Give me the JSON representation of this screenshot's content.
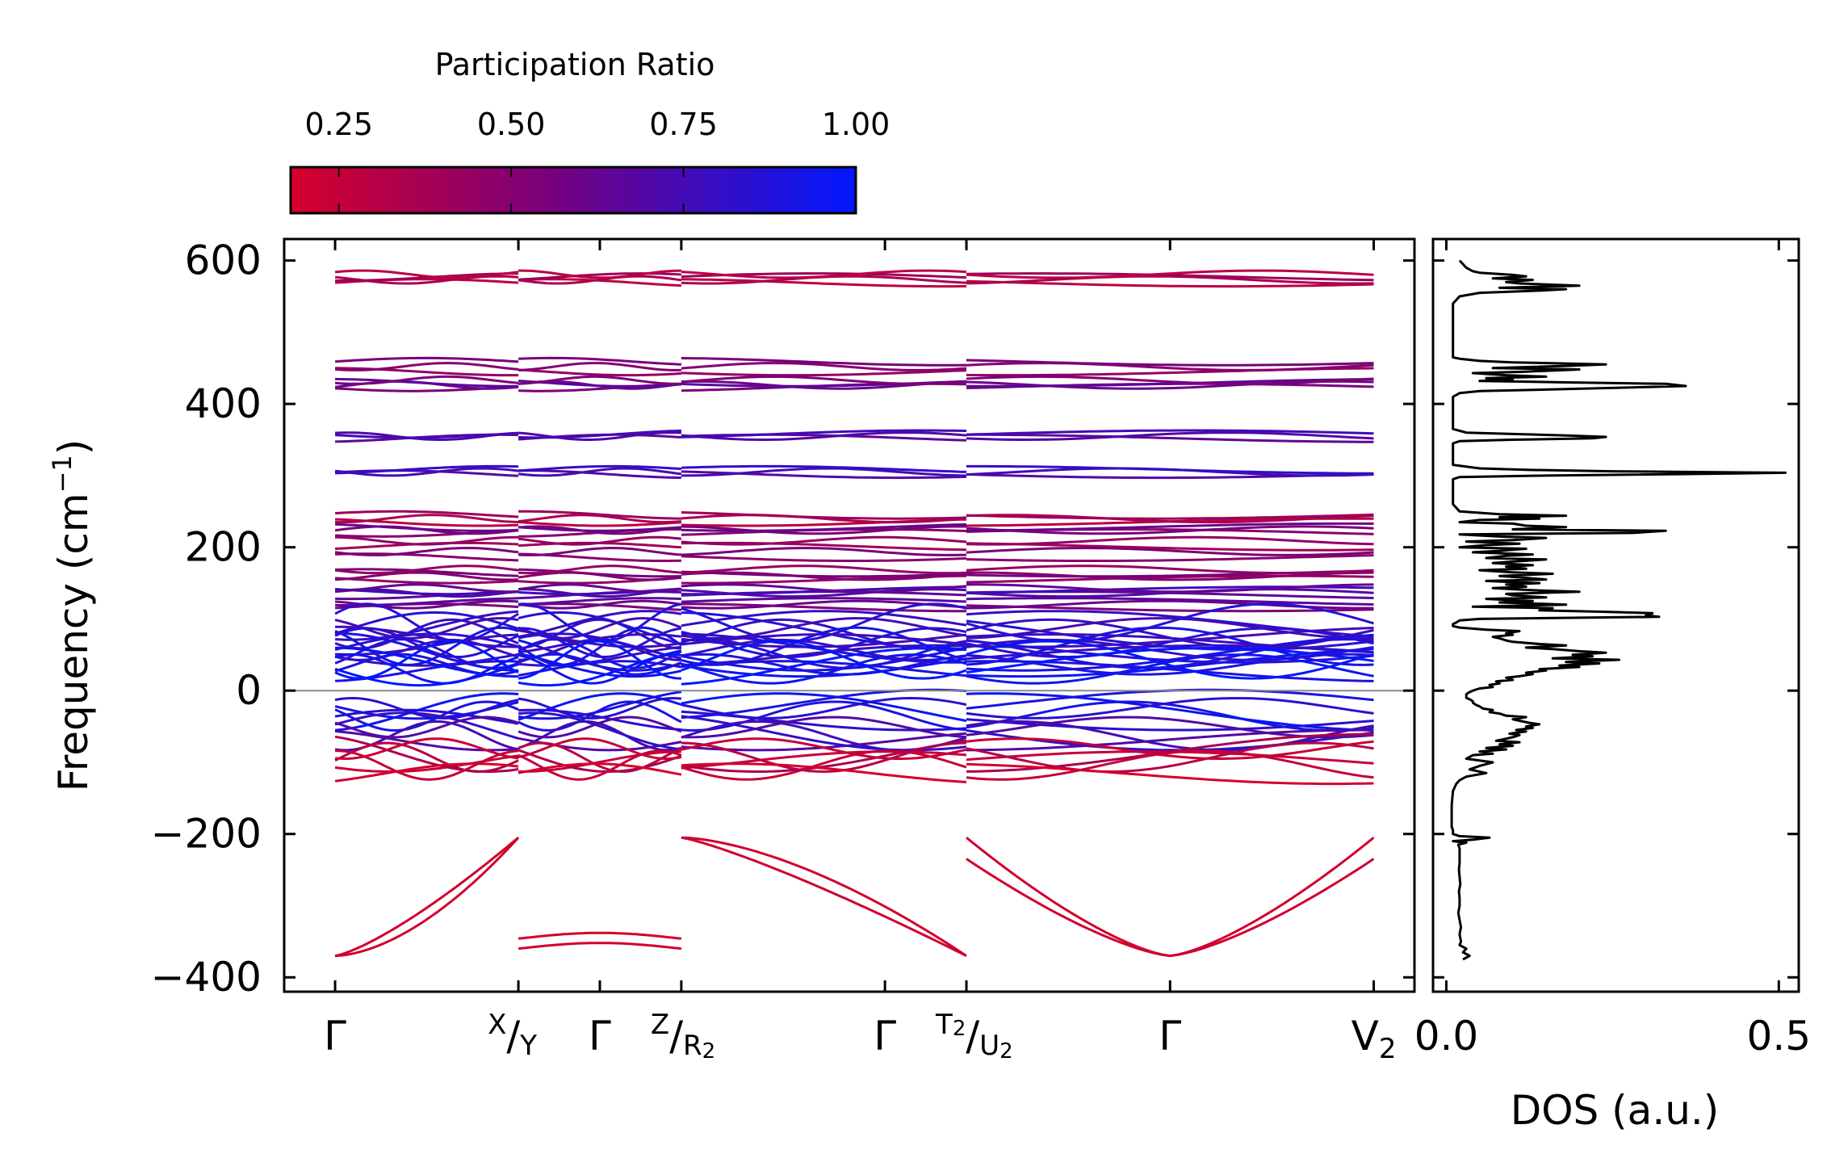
{
  "colorbar": {
    "title": "Participation Ratio",
    "ticks": [
      0.25,
      0.5,
      0.75,
      1.0
    ],
    "tick_labels": [
      "0.25",
      "0.50",
      "0.75",
      "1.00"
    ],
    "range": [
      0.18,
      1.0
    ],
    "color_low": "#d6002a",
    "color_mid": "#7a007a",
    "color_high": "#0018ff"
  },
  "chart_data": [
    {
      "type": "line",
      "name": "phonon band structure",
      "ylabel": "Frequency (cm",
      "ylabel_sup": "−1",
      "ylabel_suffix": ")",
      "ylim": [
        -420,
        630
      ],
      "yticks": [
        -400,
        -200,
        0,
        200,
        400,
        600
      ],
      "ytick_labels": [
        "−400",
        "−200",
        "0",
        "200",
        "400",
        "600"
      ],
      "xlim": [
        -0.25,
        5.3
      ],
      "high_symmetry_points": [
        {
          "x": 0.0,
          "main": "Γ",
          "small": false
        },
        {
          "x": 0.9,
          "main": "X",
          "second": "Y",
          "small": true
        },
        {
          "x": 1.3,
          "main": "Γ",
          "small": false
        },
        {
          "x": 1.7,
          "main": "Z",
          "second": "R",
          "sub": "2",
          "small": true
        },
        {
          "x": 2.7,
          "main": "Γ",
          "small": false
        },
        {
          "x": 3.1,
          "main": "T",
          "tsub": "2",
          "second": "U",
          "sub": "2",
          "small": true
        },
        {
          "x": 4.1,
          "main": "Γ",
          "small": false
        },
        {
          "x": 5.1,
          "main": "V",
          "sub": "2",
          "small": false
        }
      ],
      "segments": [
        [
          0.0,
          0.9
        ],
        [
          0.9,
          1.7
        ],
        [
          1.7,
          3.1
        ],
        [
          3.1,
          5.1
        ]
      ],
      "zero_line": 0,
      "band_families": [
        {
          "center": 575,
          "spread": 12,
          "count": 4,
          "pr": 0.35
        },
        {
          "center": 452,
          "spread": 14,
          "count": 3,
          "pr": 0.5
        },
        {
          "center": 428,
          "spread": 10,
          "count": 4,
          "pr": 0.6
        },
        {
          "center": 355,
          "spread": 6,
          "count": 3,
          "pr": 0.7
        },
        {
          "center": 305,
          "spread": 6,
          "count": 3,
          "pr": 0.75
        },
        {
          "center": 240,
          "spread": 10,
          "count": 3,
          "pr": 0.35
        },
        {
          "center": 224,
          "spread": 8,
          "count": 3,
          "pr": 0.55
        },
        {
          "center": 205,
          "spread": 8,
          "count": 2,
          "pr": 0.45
        },
        {
          "center": 190,
          "spread": 8,
          "count": 2,
          "pr": 0.55
        },
        {
          "center": 162,
          "spread": 14,
          "count": 4,
          "pr": 0.5
        },
        {
          "center": 138,
          "spread": 10,
          "count": 4,
          "pr": 0.7
        },
        {
          "center": 120,
          "spread": 8,
          "count": 3,
          "pr": 0.6
        },
        {
          "center": 85,
          "spread": 20,
          "count": 6,
          "pr": 0.8
        },
        {
          "center": 58,
          "spread": 18,
          "count": 8,
          "pr": 0.85
        },
        {
          "center": 35,
          "spread": 16,
          "count": 6,
          "pr": 0.95
        },
        {
          "center": -30,
          "spread": 22,
          "count": 5,
          "pr": 0.9
        },
        {
          "center": -60,
          "spread": 18,
          "count": 4,
          "pr": 0.75
        },
        {
          "center": -90,
          "spread": 18,
          "count": 4,
          "pr": 0.3
        },
        {
          "center": -110,
          "spread": 12,
          "count": 2,
          "pr": 0.25
        }
      ],
      "soft_modes": {
        "min": -370,
        "max": -205,
        "pr": 0.2
      }
    },
    {
      "type": "line",
      "name": "density of states",
      "xlabel": "DOS (a.u.)",
      "xlim": [
        -0.02,
        0.53
      ],
      "xticks": [
        0.0,
        0.5
      ],
      "xtick_labels": [
        "0.0",
        "0.5"
      ],
      "ylim": [
        -420,
        630
      ],
      "freq": [
        -375,
        -370,
        -365,
        -360,
        -355,
        -350,
        -340,
        -330,
        -320,
        -310,
        -300,
        -290,
        -280,
        -270,
        -260,
        -250,
        -240,
        -230,
        -220,
        -215,
        -212,
        -210,
        -208,
        -205,
        -203,
        -200,
        -195,
        -190,
        -180,
        -170,
        -160,
        -150,
        -140,
        -130,
        -125,
        -120,
        -115,
        -110,
        -105,
        -100,
        -95,
        -90,
        -88,
        -85,
        -82,
        -80,
        -77,
        -75,
        -72,
        -70,
        -67,
        -65,
        -62,
        -60,
        -57,
        -55,
        -52,
        -50,
        -47,
        -45,
        -42,
        -40,
        -37,
        -35,
        -32,
        -30,
        -27,
        -25,
        -22,
        -20,
        -17,
        -15,
        -12,
        -10,
        -7,
        -5,
        -2,
        0,
        3,
        5,
        8,
        10,
        13,
        15,
        18,
        20,
        23,
        25,
        28,
        30,
        33,
        35,
        38,
        40,
        43,
        45,
        48,
        50,
        53,
        55,
        58,
        60,
        63,
        65,
        68,
        70,
        73,
        75,
        78,
        80,
        83,
        85,
        88,
        90,
        93,
        95,
        98,
        100,
        103,
        105,
        108,
        110,
        112,
        115,
        117,
        120,
        123,
        125,
        128,
        130,
        133,
        135,
        138,
        140,
        143,
        145,
        148,
        150,
        153,
        155,
        158,
        160,
        163,
        165,
        168,
        170,
        173,
        175,
        178,
        180,
        183,
        185,
        188,
        190,
        193,
        195,
        198,
        200,
        203,
        205,
        208,
        210,
        213,
        215,
        218,
        220,
        223,
        225,
        228,
        230,
        233,
        235,
        238,
        240,
        242,
        244,
        246,
        250,
        260,
        270,
        280,
        290,
        295,
        298,
        300,
        302,
        304,
        306,
        308,
        310,
        315,
        320,
        330,
        340,
        345,
        348,
        350,
        352,
        354,
        356,
        358,
        360,
        365,
        370,
        380,
        390,
        400,
        410,
        415,
        418,
        420,
        423,
        425,
        428,
        430,
        432,
        434,
        436,
        438,
        440,
        443,
        445,
        448,
        450,
        453,
        455,
        458,
        460,
        463,
        465,
        470,
        480,
        490,
        500,
        510,
        520,
        530,
        540,
        550,
        555,
        558,
        560,
        562,
        565,
        568,
        570,
        573,
        575,
        578,
        580,
        583,
        585,
        590,
        600
      ],
      "dos": [
        0.025,
        0.035,
        0.025,
        0.03,
        0.02,
        0.022,
        0.02,
        0.022,
        0.02,
        0.018,
        0.02,
        0.02,
        0.019,
        0.021,
        0.02,
        0.019,
        0.02,
        0.02,
        0.02,
        0.018,
        0.03,
        0.01,
        0.04,
        0.065,
        0.02,
        0.01,
        0.01,
        0.008,
        0.008,
        0.008,
        0.008,
        0.009,
        0.01,
        0.015,
        0.02,
        0.03,
        0.06,
        0.035,
        0.05,
        0.07,
        0.03,
        0.04,
        0.07,
        0.05,
        0.09,
        0.06,
        0.1,
        0.08,
        0.11,
        0.075,
        0.09,
        0.1,
        0.11,
        0.095,
        0.12,
        0.105,
        0.13,
        0.12,
        0.14,
        0.125,
        0.11,
        0.1,
        0.12,
        0.09,
        0.08,
        0.065,
        0.07,
        0.055,
        0.05,
        0.045,
        0.04,
        0.04,
        0.035,
        0.03,
        0.03,
        0.03,
        0.035,
        0.04,
        0.05,
        0.07,
        0.065,
        0.08,
        0.075,
        0.1,
        0.09,
        0.11,
        0.13,
        0.12,
        0.15,
        0.14,
        0.2,
        0.17,
        0.23,
        0.18,
        0.26,
        0.16,
        0.22,
        0.19,
        0.24,
        0.2,
        0.16,
        0.12,
        0.18,
        0.14,
        0.1,
        0.09,
        0.08,
        0.07,
        0.1,
        0.09,
        0.11,
        0.06,
        0.02,
        0.01,
        0.01,
        0.015,
        0.02,
        0.05,
        0.32,
        0.3,
        0.31,
        0.24,
        0.14,
        0.16,
        0.04,
        0.18,
        0.08,
        0.13,
        0.06,
        0.15,
        0.1,
        0.09,
        0.2,
        0.13,
        0.07,
        0.12,
        0.09,
        0.14,
        0.06,
        0.15,
        0.11,
        0.08,
        0.16,
        0.1,
        0.05,
        0.12,
        0.09,
        0.13,
        0.07,
        0.1,
        0.15,
        0.06,
        0.09,
        0.13,
        0.04,
        0.08,
        0.12,
        0.02,
        0.06,
        0.11,
        0.03,
        0.1,
        0.15,
        0.08,
        0.02,
        0.28,
        0.33,
        0.1,
        0.18,
        0.12,
        0.1,
        0.02,
        0.05,
        0.14,
        0.08,
        0.18,
        0.08,
        0.02,
        0.01,
        0.01,
        0.01,
        0.01,
        0.01,
        0.02,
        0.15,
        0.35,
        0.51,
        0.25,
        0.12,
        0.05,
        0.01,
        0.01,
        0.01,
        0.01,
        0.01,
        0.02,
        0.1,
        0.22,
        0.24,
        0.18,
        0.1,
        0.03,
        0.01,
        0.01,
        0.01,
        0.01,
        0.01,
        0.01,
        0.02,
        0.05,
        0.15,
        0.28,
        0.36,
        0.33,
        0.18,
        0.05,
        0.1,
        0.06,
        0.15,
        0.09,
        0.04,
        0.12,
        0.2,
        0.07,
        0.18,
        0.24,
        0.1,
        0.05,
        0.02,
        0.01,
        0.01,
        0.01,
        0.01,
        0.01,
        0.01,
        0.01,
        0.01,
        0.01,
        0.02,
        0.05,
        0.14,
        0.18,
        0.08,
        0.2,
        0.11,
        0.09,
        0.13,
        0.07,
        0.12,
        0.1,
        0.05,
        0.04,
        0.03,
        0.02
      ]
    }
  ]
}
